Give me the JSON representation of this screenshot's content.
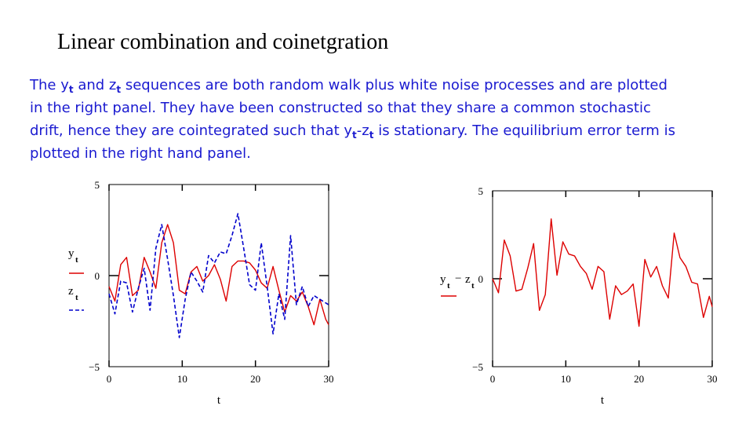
{
  "slide": {
    "title": "Linear combination and coinetgration",
    "description": {
      "l1_a": "The y",
      "l1_s1": "t",
      "l1_b": " and z",
      "l1_s2": "t",
      "l1_c": " sequences are both random walk plus white noise processes and are plotted",
      "l2": "in the right panel.  They have been constructed so that they share a common stochastic",
      "l3_a": "drift, hence they are cointegrated such that y",
      "l3_s1": "t",
      "l3_b": "-z",
      "l3_s2": "t",
      "l3_c": " is stationary.  The equilibrium error term is",
      "l4": "plotted in the right hand panel."
    }
  },
  "colors": {
    "text_blue": "#1a1ad0",
    "series_red": "#dd0000",
    "series_blue": "#0000cc"
  },
  "chart_data": [
    {
      "type": "line",
      "xlabel": "t",
      "xticks": [
        "0",
        "10",
        "20",
        "30"
      ],
      "yticks": [
        "5",
        "0",
        "−5"
      ],
      "xlim": [
        0,
        30
      ],
      "ylim": [
        -5,
        5
      ],
      "legend": [
        {
          "name": "y",
          "sub": "t",
          "style": "solid"
        },
        {
          "name": "z",
          "sub": "t",
          "style": "dashed"
        }
      ],
      "series": [
        {
          "name": "yt",
          "style": "solid",
          "x": [
            0,
            0.8,
            1.6,
            2.4,
            3.2,
            4,
            4.8,
            5.6,
            6.4,
            7.2,
            8,
            8.8,
            9.6,
            10.4,
            11.2,
            12,
            12.8,
            13.6,
            14.4,
            15.2,
            16,
            16.8,
            17.6,
            18.4,
            19.2,
            20,
            20.8,
            21.6,
            22.4,
            23.2,
            24,
            24.8,
            25.6,
            26.4,
            27.2,
            28,
            28.8,
            29.6,
            30
          ],
          "y": [
            -0.6,
            -1.4,
            0.6,
            1.0,
            -1.1,
            -0.8,
            1.0,
            0.2,
            -0.7,
            1.8,
            2.8,
            1.8,
            -0.8,
            -1.0,
            0.2,
            0.5,
            -0.3,
            0.0,
            0.6,
            -0.2,
            -1.4,
            0.5,
            0.8,
            0.8,
            0.7,
            0.3,
            -0.4,
            -0.7,
            0.5,
            -0.8,
            -2.0,
            -1.1,
            -1.4,
            -0.9,
            -1.7,
            -2.7,
            -1.3,
            -2.4,
            -2.7
          ]
        },
        {
          "name": "zt",
          "style": "dashed",
          "x": [
            0,
            0.8,
            1.6,
            2.4,
            3.2,
            4,
            4.8,
            5.6,
            6.4,
            7.2,
            8,
            8.8,
            9.6,
            10.4,
            11.2,
            12,
            12.8,
            13.6,
            14.4,
            15.2,
            16,
            16.8,
            17.6,
            18.4,
            19.2,
            20,
            20.8,
            21.6,
            22.4,
            23.2,
            24,
            24.8,
            25.6,
            26.4,
            27.2,
            28,
            28.8,
            29.6,
            30
          ],
          "y": [
            -1.0,
            -2.1,
            -0.3,
            -0.4,
            -2.0,
            -0.7,
            0.4,
            -1.9,
            1.5,
            2.8,
            0.9,
            -1.1,
            -3.4,
            -1.3,
            0.2,
            -0.3,
            -0.9,
            1.1,
            0.7,
            1.3,
            1.2,
            2.2,
            3.4,
            1.5,
            -0.5,
            -0.8,
            1.8,
            -0.6,
            -3.2,
            -1.0,
            -2.4,
            2.2,
            -1.6,
            -0.6,
            -1.7,
            -1.1,
            -1.3,
            -1.5,
            -1.6
          ]
        }
      ]
    },
    {
      "type": "line",
      "xlabel": "t",
      "xticks": [
        "0",
        "10",
        "20",
        "30"
      ],
      "yticks": [
        "5",
        "0",
        "−5"
      ],
      "xlim": [
        0,
        30
      ],
      "ylim": [
        -5,
        5
      ],
      "ylabel": {
        "a": "y",
        "as": "t",
        "op": "−",
        "b": "z",
        "bs": "t"
      },
      "series": [
        {
          "name": "yt − zt",
          "style": "solid",
          "x": [
            0,
            0.8,
            1.6,
            2.4,
            3.2,
            4,
            4.8,
            5.6,
            6.4,
            7.2,
            8,
            8.8,
            9.6,
            10.4,
            11.2,
            12,
            12.8,
            13.6,
            14.4,
            15.2,
            16,
            16.8,
            17.6,
            18.4,
            19.2,
            20,
            20.8,
            21.6,
            22.4,
            23.2,
            24,
            24.8,
            25.6,
            26.4,
            27.2,
            28,
            28.8,
            29.6,
            30
          ],
          "y": [
            0.0,
            -0.8,
            2.2,
            1.3,
            -0.7,
            -0.6,
            0.6,
            2.0,
            -1.8,
            -0.9,
            3.4,
            0.2,
            2.1,
            1.4,
            1.3,
            0.7,
            0.3,
            -0.6,
            0.7,
            0.4,
            -2.3,
            -0.4,
            -0.9,
            -0.7,
            -0.3,
            -2.7,
            1.1,
            0.1,
            0.7,
            -0.4,
            -1.1,
            2.6,
            1.2,
            0.7,
            -0.2,
            -0.3,
            -2.2,
            -1.0,
            -1.6
          ]
        }
      ]
    }
  ]
}
